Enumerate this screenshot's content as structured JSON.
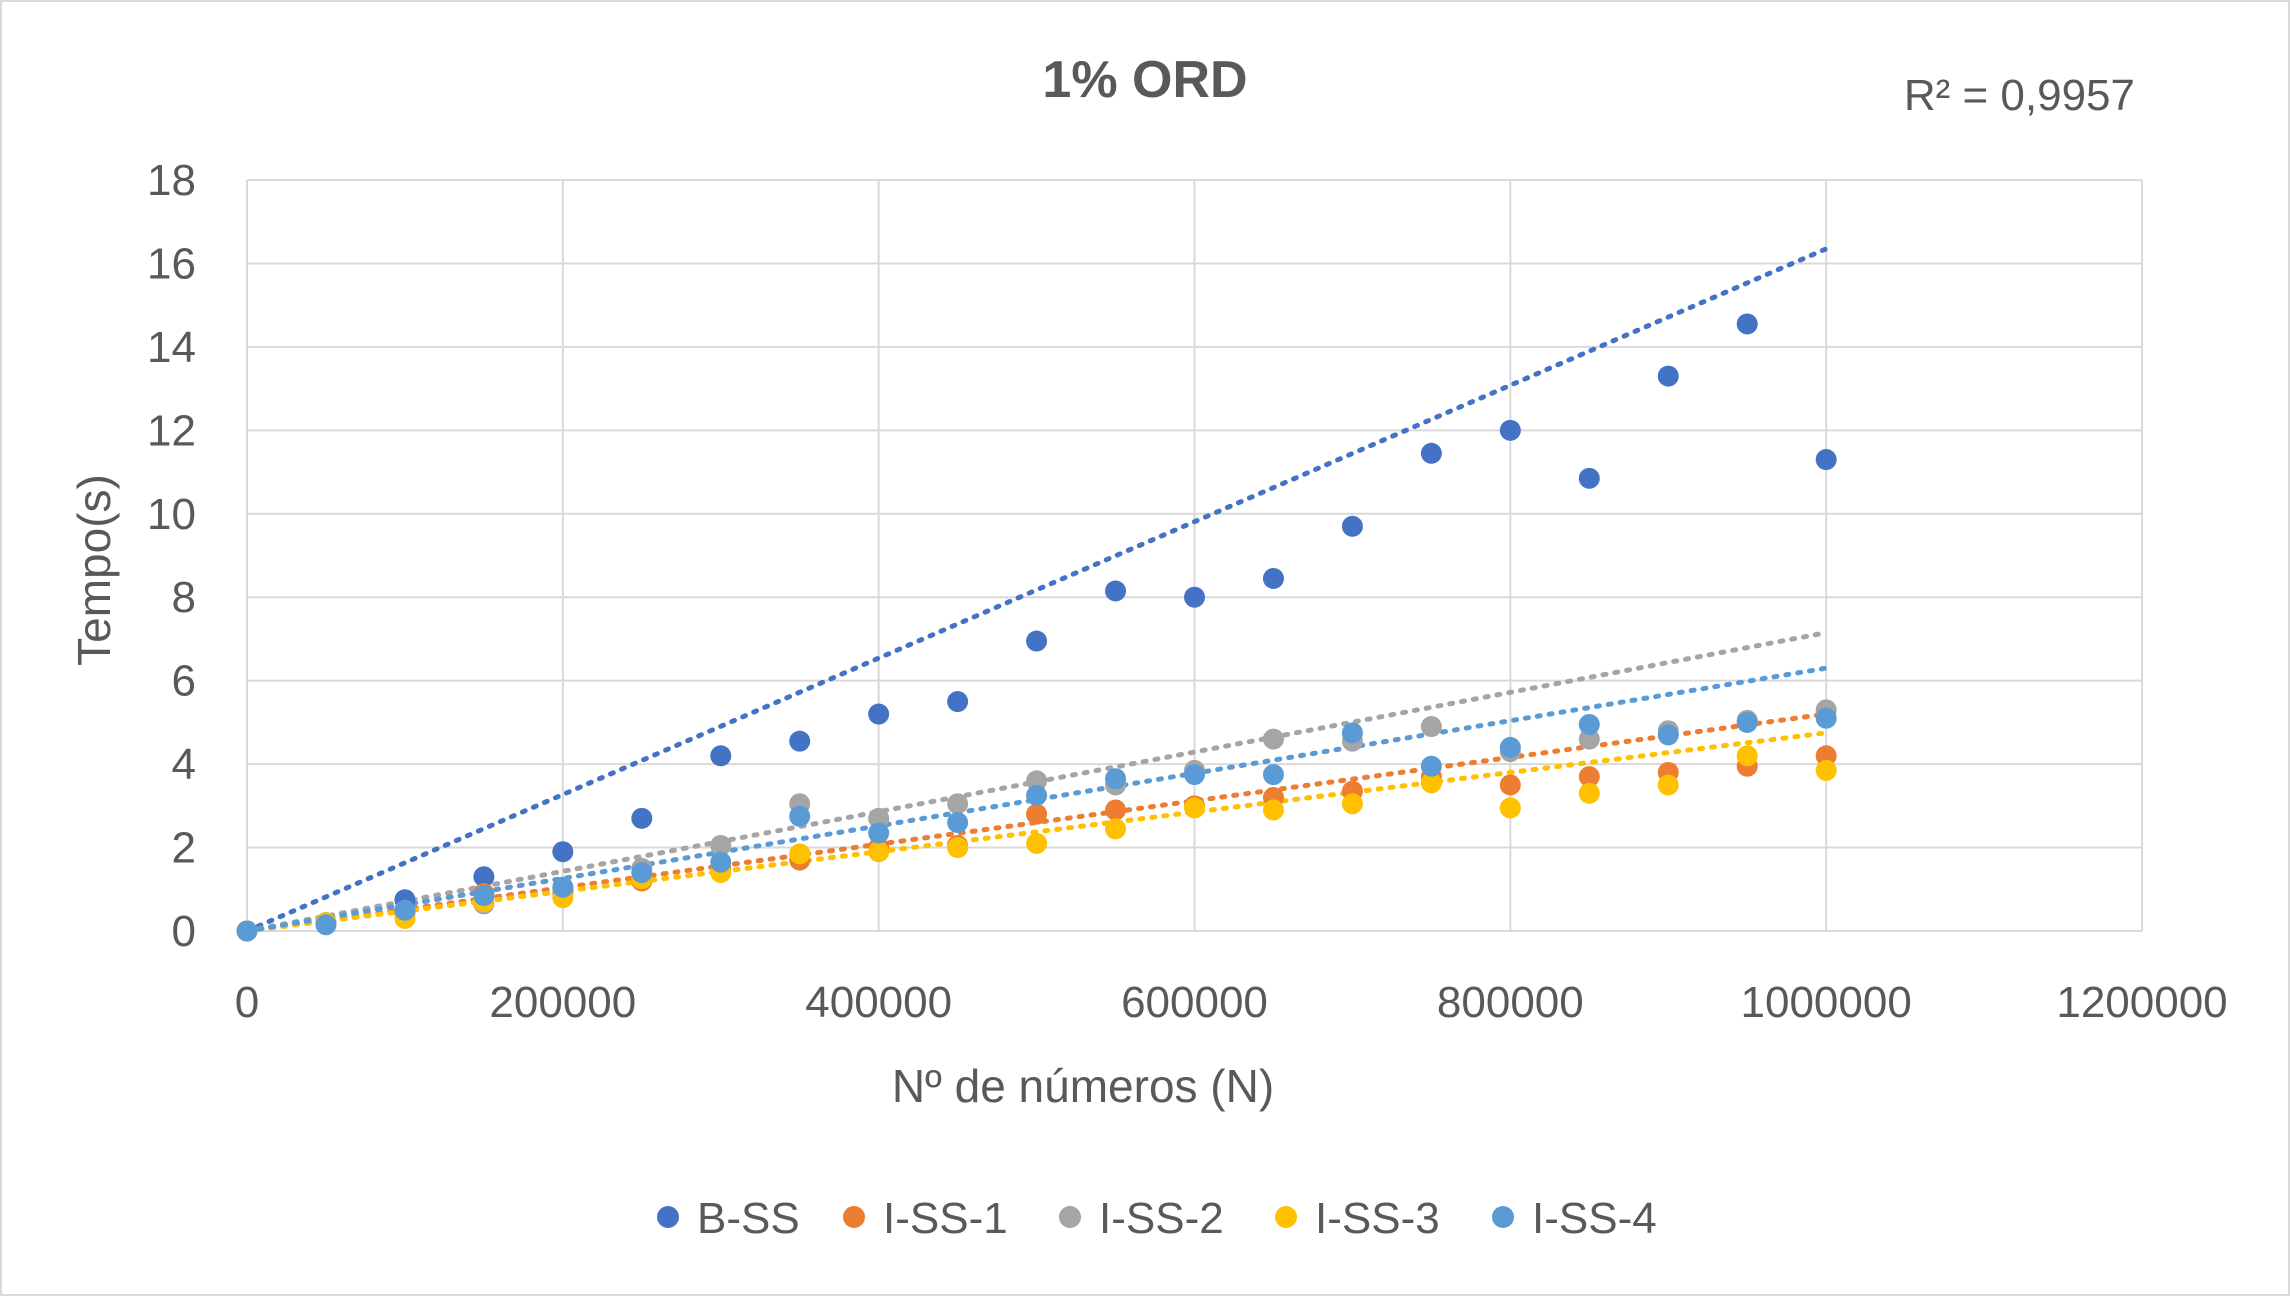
{
  "chart_data": {
    "type": "scatter",
    "title": "1% ORD",
    "annotation": "R² = 0,9957",
    "xlabel": "Nº de números (N)",
    "ylabel": "Tempo(s)",
    "xlim": [
      0,
      1200000
    ],
    "ylim": [
      0,
      18
    ],
    "xticks": [
      "0",
      "200000",
      "400000",
      "600000",
      "800000",
      "1000000",
      "1200000"
    ],
    "yticks": [
      "0",
      "2",
      "4",
      "6",
      "8",
      "10",
      "12",
      "14",
      "16",
      "18"
    ],
    "xtick_values": [
      0,
      200000,
      400000,
      600000,
      800000,
      1000000,
      1200000
    ],
    "ytick_values": [
      0,
      2,
      4,
      6,
      8,
      10,
      12,
      14,
      16,
      18
    ],
    "grid": true,
    "legend_position": "bottom",
    "x": [
      0,
      50000,
      100000,
      150000,
      200000,
      250000,
      300000,
      350000,
      400000,
      450000,
      500000,
      550000,
      600000,
      650000,
      700000,
      750000,
      800000,
      850000,
      900000,
      950000,
      1000000
    ],
    "series": [
      {
        "name": "B-SS",
        "color": "#4472C4",
        "values": [
          0,
          0.2,
          0.75,
          1.3,
          1.9,
          2.7,
          4.2,
          4.55,
          5.2,
          5.5,
          6.95,
          8.15,
          8.0,
          8.45,
          9.7,
          11.45,
          12.0,
          10.85,
          13.3,
          14.55,
          11.3
        ],
        "trendline_end": 16.35
      },
      {
        "name": "I-SS-1",
        "color": "#ED7D31",
        "values": [
          0,
          0.2,
          0.4,
          0.9,
          0.9,
          1.2,
          1.5,
          1.7,
          2.0,
          2.05,
          2.8,
          2.9,
          3.0,
          3.2,
          3.35,
          3.7,
          3.5,
          3.7,
          3.8,
          3.95,
          4.2
        ],
        "trendline_end": 5.2
      },
      {
        "name": "I-SS-2",
        "color": "#A5A5A5",
        "values": [
          0,
          0.2,
          0.45,
          0.65,
          1.0,
          1.5,
          2.05,
          3.05,
          2.7,
          3.05,
          3.6,
          3.5,
          3.85,
          4.6,
          4.55,
          4.9,
          4.3,
          4.6,
          4.8,
          5.05,
          5.3
        ],
        "trendline_end": 7.15
      },
      {
        "name": "I-SS-3",
        "color": "#FFC000",
        "values": [
          0,
          0.2,
          0.3,
          0.7,
          0.8,
          1.25,
          1.4,
          1.85,
          1.9,
          2.0,
          2.1,
          2.45,
          2.95,
          2.9,
          3.05,
          3.55,
          2.95,
          3.3,
          3.5,
          4.2,
          3.85
        ],
        "trendline_end": 4.75
      },
      {
        "name": "I-SS-4",
        "color": "#5B9BD5",
        "values": [
          0,
          0.15,
          0.5,
          0.85,
          1.05,
          1.4,
          1.65,
          2.75,
          2.35,
          2.6,
          3.25,
          3.65,
          3.75,
          3.75,
          4.75,
          3.95,
          4.4,
          4.95,
          4.7,
          5.0,
          5.1
        ],
        "trendline_end": 6.3
      }
    ]
  }
}
